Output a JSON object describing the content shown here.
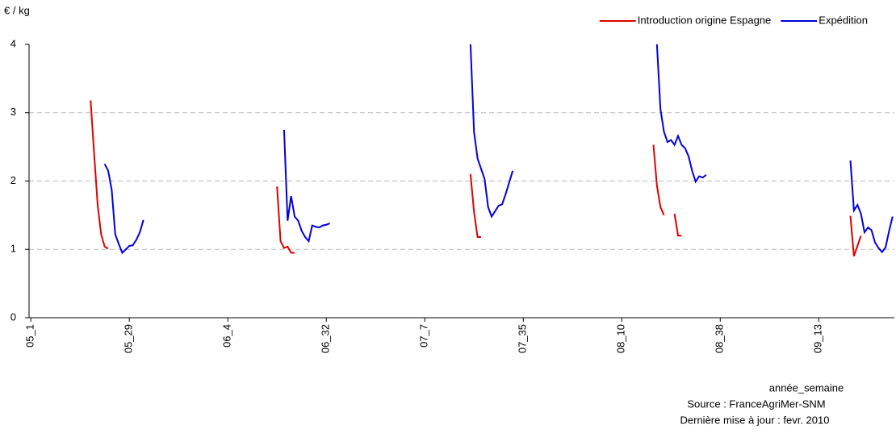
{
  "chart_data": {
    "type": "line",
    "y_label": "€ / kg",
    "x_label": "année_semaine",
    "source": "Source : FranceAgriMer-SNM",
    "updated": "Dernière mise à jour : fevr. 2010",
    "legend": "top-right",
    "grid": true,
    "ylim": [
      0,
      4
    ],
    "yticks": [
      0,
      1,
      2,
      3,
      4
    ],
    "categories": [
      "05_1",
      null,
      null,
      null,
      null,
      null,
      null,
      null,
      null,
      null,
      null,
      null,
      null,
      null,
      null,
      null,
      null,
      null,
      null,
      null,
      null,
      null,
      null,
      null,
      null,
      null,
      null,
      null,
      "05_29",
      null,
      null,
      null,
      null,
      null,
      null,
      null,
      null,
      null,
      null,
      null,
      null,
      null,
      null,
      null,
      null,
      null,
      null,
      null,
      null,
      null,
      null,
      null,
      null,
      null,
      null,
      null,
      "06_4",
      null,
      null,
      null,
      null,
      null,
      null,
      null,
      null,
      null,
      null,
      null,
      null,
      null,
      null,
      null,
      null,
      null,
      null,
      null,
      null,
      null,
      null,
      null,
      null,
      null,
      null,
      null,
      "06_32",
      null,
      null,
      null,
      null,
      null,
      null,
      null,
      null,
      null,
      null,
      null,
      null,
      null,
      null,
      null,
      null,
      null,
      null,
      null,
      null,
      null,
      null,
      null,
      null,
      null,
      null,
      null,
      "07_7",
      null,
      null,
      null,
      null,
      null,
      null,
      null,
      null,
      null,
      null,
      null,
      null,
      null,
      null,
      null,
      null,
      null,
      null,
      null,
      null,
      null,
      null,
      null,
      null,
      null,
      null,
      null,
      "07_35",
      null,
      null,
      null,
      null,
      null,
      null,
      null,
      null,
      null,
      null,
      null,
      null,
      null,
      null,
      null,
      null,
      null,
      null,
      null,
      null,
      null,
      null,
      null,
      null,
      null,
      null,
      null,
      "08_10",
      null,
      null,
      null,
      null,
      null,
      null,
      null,
      null,
      null,
      null,
      null,
      null,
      null,
      null,
      null,
      null,
      null,
      null,
      null,
      null,
      null,
      null,
      null,
      null,
      null,
      null,
      null,
      "08_38",
      null,
      null,
      null,
      null,
      null,
      null,
      null,
      null,
      null,
      null,
      null,
      null,
      null,
      null,
      null,
      null,
      null,
      null,
      null,
      null,
      null,
      null,
      null,
      null,
      null,
      null,
      null,
      "09_13",
      null,
      null,
      null,
      null,
      null,
      null,
      null,
      null,
      null,
      null,
      null,
      null,
      null,
      null,
      null,
      null,
      null,
      null,
      null,
      null,
      null
    ],
    "series": [
      {
        "name": "Introduction origine Espagne",
        "color": "#e00000",
        "values": [
          null,
          null,
          null,
          null,
          null,
          null,
          null,
          null,
          null,
          null,
          null,
          null,
          null,
          null,
          null,
          null,
          null,
          3.18,
          2.4,
          1.65,
          1.22,
          1.04,
          1.01,
          null,
          null,
          null,
          null,
          null,
          null,
          null,
          null,
          null,
          null,
          null,
          null,
          null,
          null,
          null,
          null,
          null,
          null,
          null,
          null,
          null,
          null,
          null,
          null,
          null,
          null,
          null,
          null,
          null,
          null,
          null,
          null,
          null,
          null,
          null,
          null,
          null,
          null,
          null,
          null,
          null,
          null,
          null,
          null,
          null,
          null,
          null,
          1.92,
          1.12,
          1.02,
          1.04,
          0.95,
          0.95,
          null,
          null,
          null,
          null,
          null,
          null,
          null,
          null,
          null,
          null,
          null,
          null,
          null,
          null,
          null,
          null,
          null,
          null,
          null,
          null,
          null,
          null,
          null,
          null,
          null,
          null,
          null,
          null,
          null,
          null,
          null,
          null,
          null,
          null,
          null,
          null,
          null,
          null,
          null,
          null,
          null,
          null,
          null,
          null,
          null,
          null,
          null,
          null,
          null,
          2.1,
          1.55,
          1.18,
          1.18,
          null,
          null,
          null,
          null,
          null,
          null,
          null,
          null,
          null,
          null,
          null,
          null,
          null,
          null,
          null,
          null,
          null,
          null,
          null,
          null,
          null,
          null,
          null,
          null,
          null,
          null,
          null,
          null,
          null,
          null,
          null,
          null,
          null,
          null,
          null,
          null,
          null,
          null,
          null,
          null,
          null,
          null,
          null,
          null,
          null,
          null,
          null,
          null,
          2.53,
          1.93,
          1.62,
          1.5,
          null,
          null,
          1.52,
          1.2,
          1.2,
          null,
          null,
          null,
          null,
          null,
          null,
          null,
          null,
          null,
          null,
          null,
          null,
          null,
          null,
          null,
          null,
          null,
          null,
          null,
          null,
          null,
          null,
          null,
          null,
          null,
          null,
          null,
          null,
          null,
          null,
          null,
          null,
          null,
          null,
          null,
          null,
          null,
          null,
          null,
          null,
          null,
          null,
          null,
          null,
          null,
          null,
          null,
          1.49,
          0.9,
          1.05,
          1.2,
          null,
          null,
          null,
          null,
          null,
          null,
          null,
          null,
          null
        ]
      },
      {
        "name": "Expédition",
        "color": "#0000e0",
        "values": [
          null,
          null,
          null,
          null,
          null,
          null,
          null,
          null,
          null,
          null,
          null,
          null,
          null,
          null,
          null,
          null,
          null,
          null,
          null,
          null,
          null,
          2.25,
          2.15,
          1.87,
          1.22,
          1.08,
          0.95,
          1.0,
          1.05,
          1.06,
          1.14,
          1.25,
          1.43,
          null,
          null,
          null,
          null,
          null,
          null,
          null,
          null,
          null,
          null,
          null,
          null,
          null,
          null,
          null,
          null,
          null,
          null,
          null,
          null,
          null,
          null,
          null,
          null,
          null,
          null,
          null,
          null,
          null,
          null,
          null,
          null,
          null,
          null,
          null,
          null,
          null,
          null,
          null,
          2.75,
          1.42,
          1.78,
          1.48,
          1.42,
          1.27,
          1.18,
          1.12,
          1.35,
          1.33,
          1.32,
          1.35,
          1.36,
          1.38,
          null,
          null,
          null,
          null,
          null,
          null,
          null,
          null,
          null,
          null,
          null,
          null,
          null,
          null,
          null,
          null,
          null,
          null,
          null,
          null,
          null,
          null,
          null,
          null,
          null,
          null,
          null,
          null,
          null,
          null,
          null,
          null,
          null,
          null,
          null,
          null,
          null,
          null,
          null,
          4.0,
          2.72,
          2.33,
          2.18,
          2.03,
          1.62,
          1.48,
          1.56,
          1.64,
          1.66,
          1.81,
          1.98,
          2.15,
          null,
          null,
          null,
          null,
          null,
          null,
          null,
          null,
          null,
          null,
          null,
          null,
          null,
          null,
          null,
          null,
          null,
          null,
          null,
          null,
          null,
          null,
          null,
          null,
          null,
          null,
          null,
          null,
          null,
          null,
          null,
          null,
          null,
          null,
          null,
          null,
          null,
          null,
          null,
          null,
          4.0,
          3.05,
          2.72,
          2.57,
          2.6,
          2.53,
          2.66,
          2.53,
          2.48,
          2.36,
          2.15,
          1.99,
          2.07,
          2.05,
          2.09,
          null,
          null,
          null,
          null,
          null,
          null,
          null,
          null,
          null,
          null,
          null,
          null,
          null,
          null,
          null,
          null,
          null,
          null,
          null,
          null,
          null,
          null,
          null,
          null,
          null,
          null,
          null,
          null,
          null,
          null,
          null,
          null,
          null,
          null,
          null,
          null,
          null,
          null,
          null,
          null,
          2.3,
          1.57,
          1.65,
          1.52,
          1.25,
          1.32,
          1.28,
          1.1,
          1.02,
          0.96,
          1.03,
          1.27,
          1.48
        ]
      }
    ]
  }
}
